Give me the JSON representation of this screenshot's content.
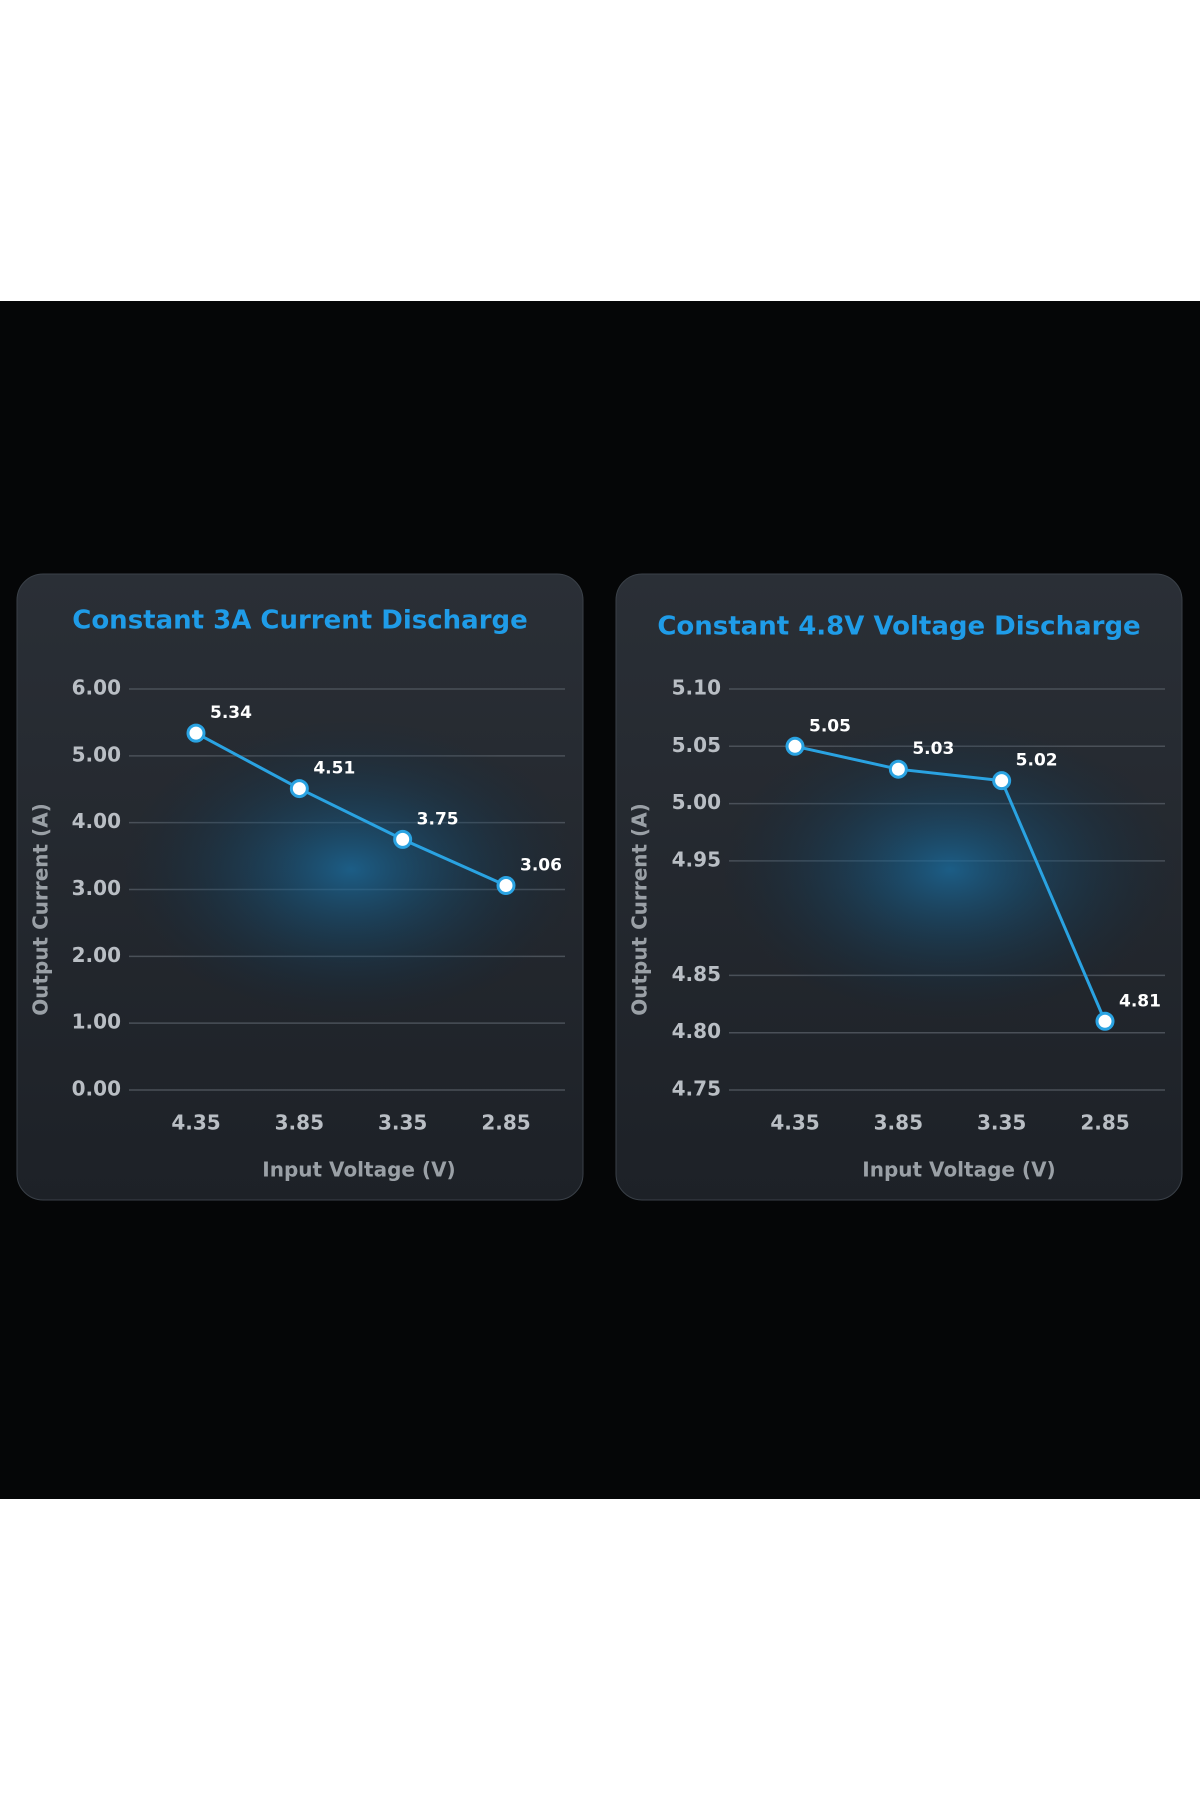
{
  "chart_data": [
    {
      "type": "line",
      "title": "Constant 3A Current Discharge",
      "x_label": "Input Voltage (V)",
      "y_label": "Output Current (A)",
      "categories": [
        "4.35",
        "3.85",
        "3.35",
        "2.85"
      ],
      "values": [
        5.34,
        4.51,
        3.75,
        3.06
      ],
      "color": "#2aa3e2",
      "ylim": [
        0,
        6
      ],
      "yticks": [
        {
          "value": 0,
          "label": "0.00"
        },
        {
          "value": 1,
          "label": "1.00"
        },
        {
          "value": 2,
          "label": "2.00"
        },
        {
          "value": 3,
          "label": "3.00"
        },
        {
          "value": 4,
          "label": "4.00"
        },
        {
          "value": 5,
          "label": "5.00"
        },
        {
          "value": 6,
          "label": "6.00"
        }
      ],
      "grid": true
    },
    {
      "type": "line",
      "title": "Constant 4.8V Voltage Discharge",
      "x_label": "Input Voltage (V)",
      "y_label": "Output Current (A)",
      "categories": [
        "4.35",
        "3.85",
        "3.35",
        "2.85"
      ],
      "values": [
        5.05,
        5.03,
        5.02,
        4.81
      ],
      "color": "#2aa3e2",
      "ylim": [
        4.75,
        5.1
      ],
      "yticks": [
        {
          "value": 4.75,
          "label": "4.75"
        },
        {
          "value": 4.8,
          "label": "4.80"
        },
        {
          "value": 4.85,
          "label": "4.85"
        },
        {
          "value": 4.95,
          "label": "4.95"
        },
        {
          "value": 5.0,
          "label": "5.00"
        },
        {
          "value": 5.05,
          "label": "5.05"
        },
        {
          "value": 5.1,
          "label": "5.10"
        }
      ],
      "grid": true
    }
  ]
}
